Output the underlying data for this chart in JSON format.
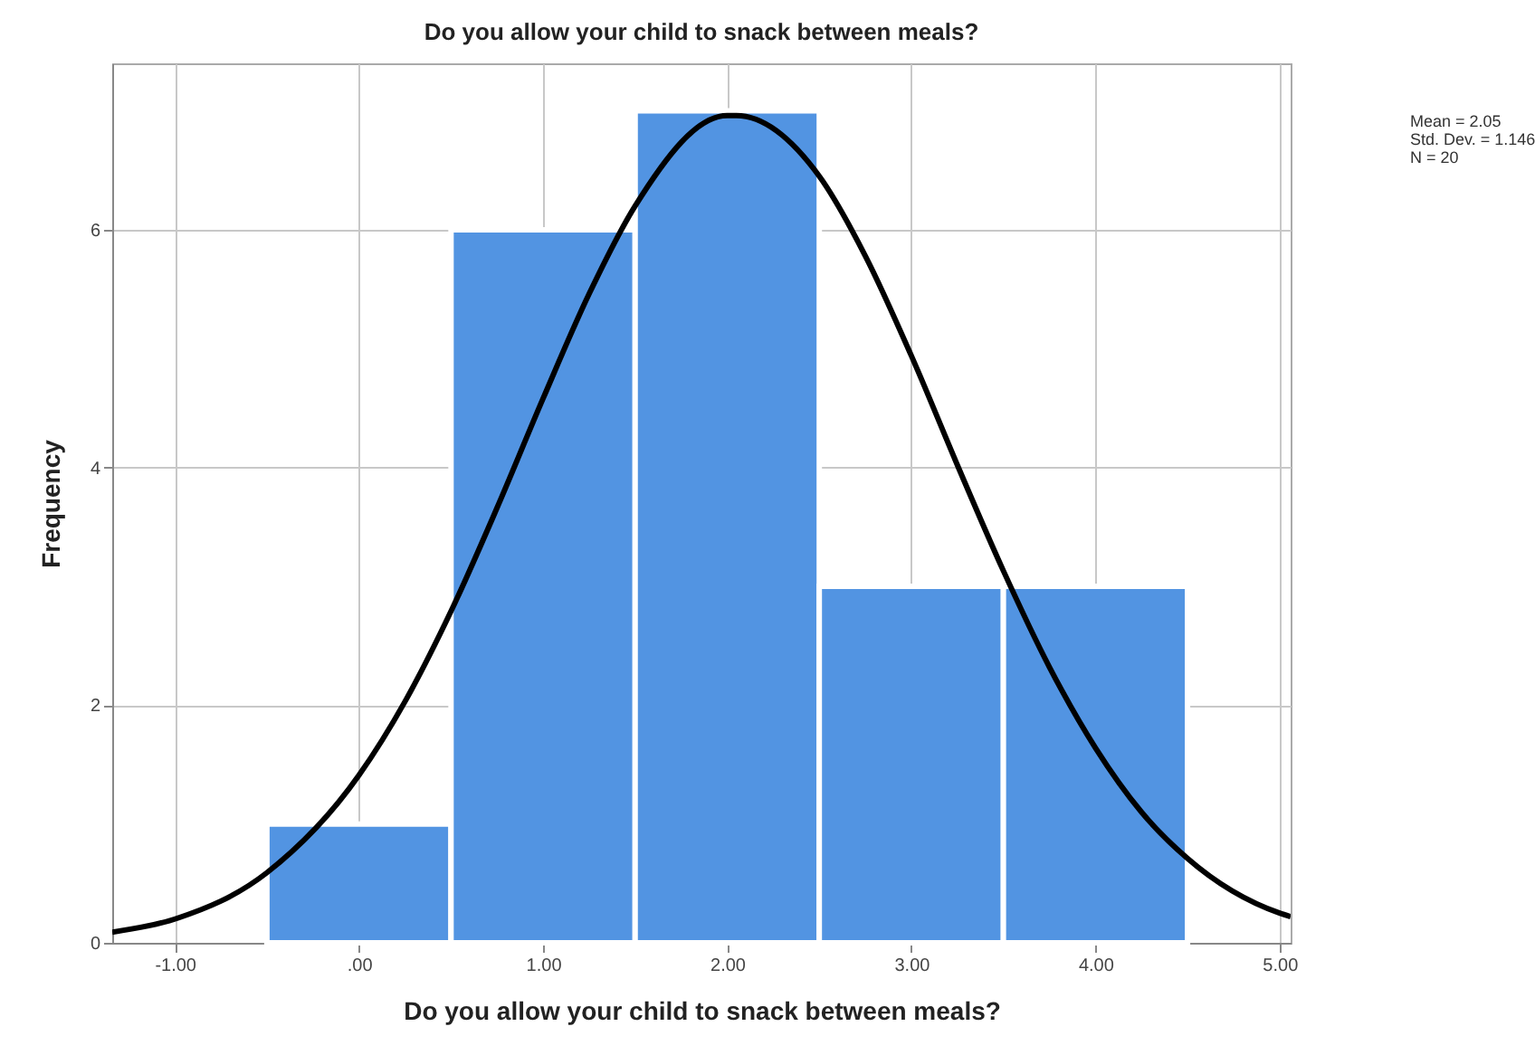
{
  "chart_data": {
    "type": "histogram",
    "title": "Do you allow your child to snack between meals?",
    "xlabel": "Do you allow your child to snack between meals?",
    "ylabel": "Frequency",
    "annotations": [
      "Mean = 2.05",
      "Std. Dev. = 1.146",
      "N = 20"
    ],
    "bins": [
      -0.5,
      0.5,
      1.5,
      2.5,
      3.5,
      4.5
    ],
    "values": [
      1,
      6,
      7,
      3,
      3
    ],
    "color": "#5294e2",
    "series": [
      {
        "type": "line",
        "color": "#000000",
        "x": [
          -1.34,
          -1,
          -0.5,
          0,
          0.25,
          0.5,
          0.75,
          1,
          1.25,
          1.5,
          2,
          2.05,
          2.5,
          2.75,
          3,
          3.25,
          3.5,
          3.75,
          4,
          4.25,
          4.5,
          5,
          5.06
        ],
        "values": [
          0.09,
          0.2,
          0.59,
          1.41,
          2.03,
          2.79,
          3.66,
          4.58,
          5.46,
          6.2,
          6.96,
          6.96,
          6.45,
          5.78,
          4.94,
          4.02,
          3.13,
          2.32,
          1.64,
          1.1,
          0.71,
          0.25,
          0.22
        ]
      }
    ],
    "xlim": [
      -1.34,
      5.06
    ],
    "ylim": [
      0,
      7.4
    ],
    "xticks": [
      {
        "value": -1,
        "label": "-1.00"
      },
      {
        "value": 0,
        "label": ".00"
      },
      {
        "value": 1,
        "label": "1.00"
      },
      {
        "value": 2,
        "label": "2.00"
      },
      {
        "value": 3,
        "label": "3.00"
      },
      {
        "value": 4,
        "label": "4.00"
      },
      {
        "value": 5,
        "label": "5.00"
      }
    ],
    "yticks": [
      0,
      2,
      4,
      6
    ],
    "grid": true
  }
}
